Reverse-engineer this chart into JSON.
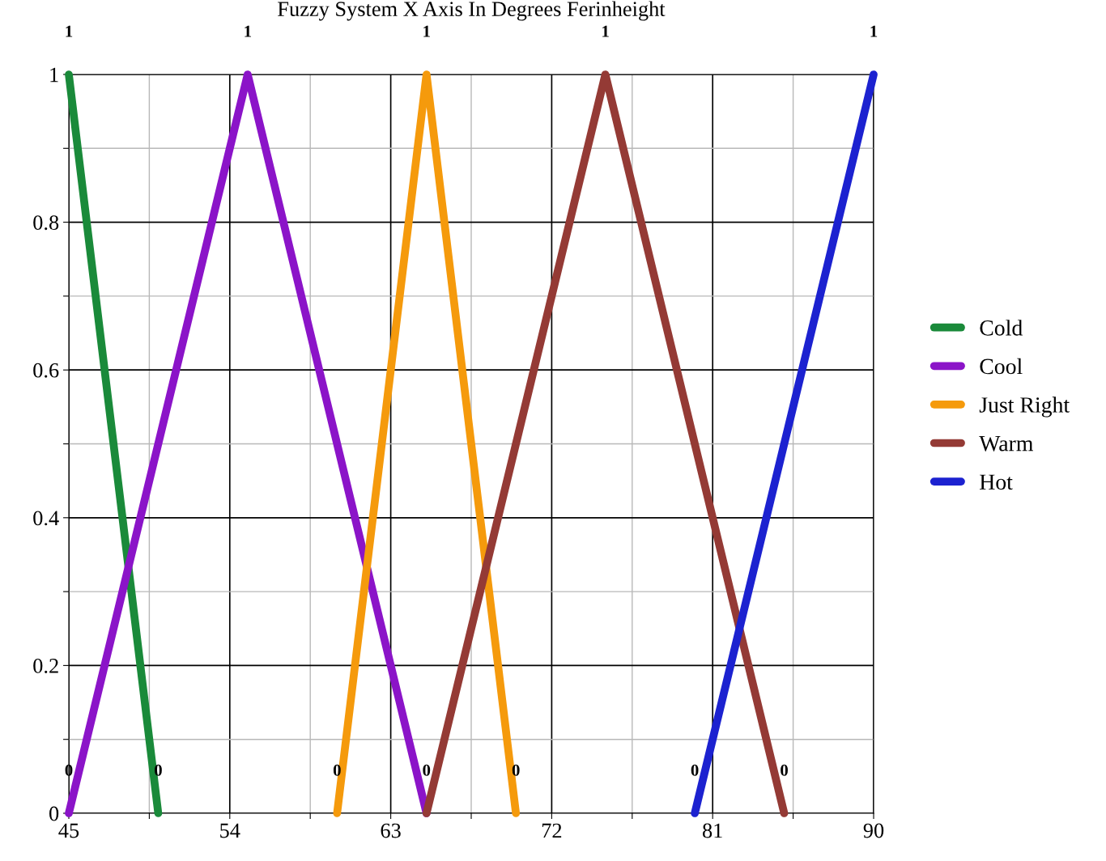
{
  "chart_data": {
    "type": "line",
    "title": "Fuzzy System X Axis In Degrees Ferinheight",
    "series": [
      {
        "name": "Cold",
        "color": "#1a8a3a",
        "x": [
          45,
          50
        ],
        "values": [
          1,
          0
        ],
        "value_labels": [
          "1",
          "0"
        ]
      },
      {
        "name": "Cool",
        "color": "#8b14c8",
        "x": [
          45,
          55,
          65
        ],
        "values": [
          0,
          1,
          0
        ],
        "value_labels": [
          "0",
          "1",
          "0"
        ]
      },
      {
        "name": "Just Right",
        "color": "#f59a0c",
        "x": [
          60,
          65,
          70
        ],
        "values": [
          0,
          1,
          0
        ],
        "value_labels": [
          "0",
          "1",
          "0"
        ]
      },
      {
        "name": "Warm",
        "color": "#943a35",
        "x": [
          65,
          75,
          85
        ],
        "values": [
          0,
          1,
          0
        ],
        "value_labels": [
          null,
          "1",
          "0"
        ]
      },
      {
        "name": "Hot",
        "color": "#1c22d0",
        "x": [
          80,
          90
        ],
        "values": [
          0,
          1
        ],
        "value_labels": [
          "0",
          "1"
        ]
      }
    ],
    "xlim": [
      45,
      90
    ],
    "xticks": [
      45,
      {
        "value": 49.5,
        "label": null
      },
      54,
      {
        "value": 58.5,
        "label": null
      },
      63,
      {
        "value": 67.5,
        "label": null
      },
      72,
      {
        "value": 76.5,
        "label": null
      },
      81,
      {
        "value": 85.5,
        "label": null
      },
      90
    ],
    "ylim": [
      0,
      1
    ],
    "yticks": [
      0,
      {
        "value": 0.1,
        "label": null
      },
      0.2,
      {
        "value": 0.3,
        "label": null
      },
      0.4,
      {
        "value": 0.5,
        "label": null
      },
      0.6,
      {
        "value": 0.7,
        "label": null
      },
      0.8,
      {
        "value": 0.9,
        "label": null
      },
      1
    ],
    "grid": true,
    "legend": "right",
    "marker": "none",
    "line_style": "solid"
  }
}
